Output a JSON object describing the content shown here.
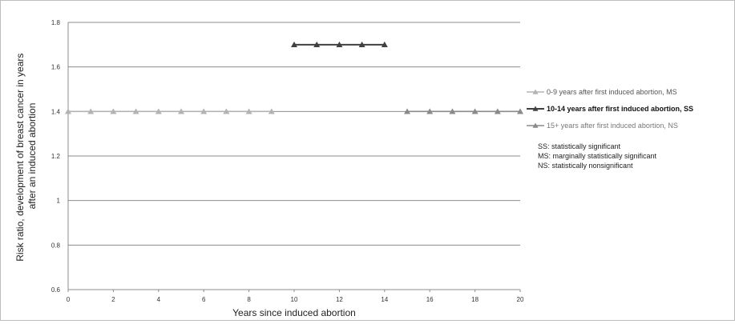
{
  "chart_data": {
    "type": "line",
    "xlabel": "Years since induced abortion",
    "ylabel_lines": [
      "Risk ratio, development of breast cancer in years",
      "after an induced abortion"
    ],
    "xlim": [
      0,
      20
    ],
    "ylim": [
      0.6,
      1.8
    ],
    "x_ticks": [
      "0",
      "2",
      "4",
      "6",
      "8",
      "10",
      "12",
      "14",
      "16",
      "18",
      "20"
    ],
    "y_ticks": [
      "0.6",
      "0.8",
      "1",
      "1.2",
      "1.4",
      "1.6",
      "1.8"
    ],
    "grid": "horizontal",
    "legend_position": "right",
    "series": [
      {
        "name": "0-9 years after first induced abortion, MS",
        "color": "#b3b3b3",
        "bold": false,
        "x": [
          0,
          1,
          2,
          3,
          4,
          5,
          6,
          7,
          8,
          9
        ],
        "y": [
          1.4,
          1.4,
          1.4,
          1.4,
          1.4,
          1.4,
          1.4,
          1.4,
          1.4,
          1.4
        ]
      },
      {
        "name": "10-14 years after first induced abortion, SS",
        "color": "#404040",
        "bold": true,
        "x": [
          10,
          11,
          12,
          13,
          14
        ],
        "y": [
          1.7,
          1.7,
          1.7,
          1.7,
          1.7
        ]
      },
      {
        "name": "15+ years after first induced abortion, NS",
        "color": "#8a8a8a",
        "bold": false,
        "x": [
          15,
          16,
          17,
          18,
          19,
          20
        ],
        "y": [
          1.4,
          1.4,
          1.4,
          1.4,
          1.4,
          1.4
        ]
      }
    ],
    "notes": [
      "SS: statistically significant",
      "MS: marginally statistically significant",
      "NS: statistically nonsignificant"
    ]
  }
}
